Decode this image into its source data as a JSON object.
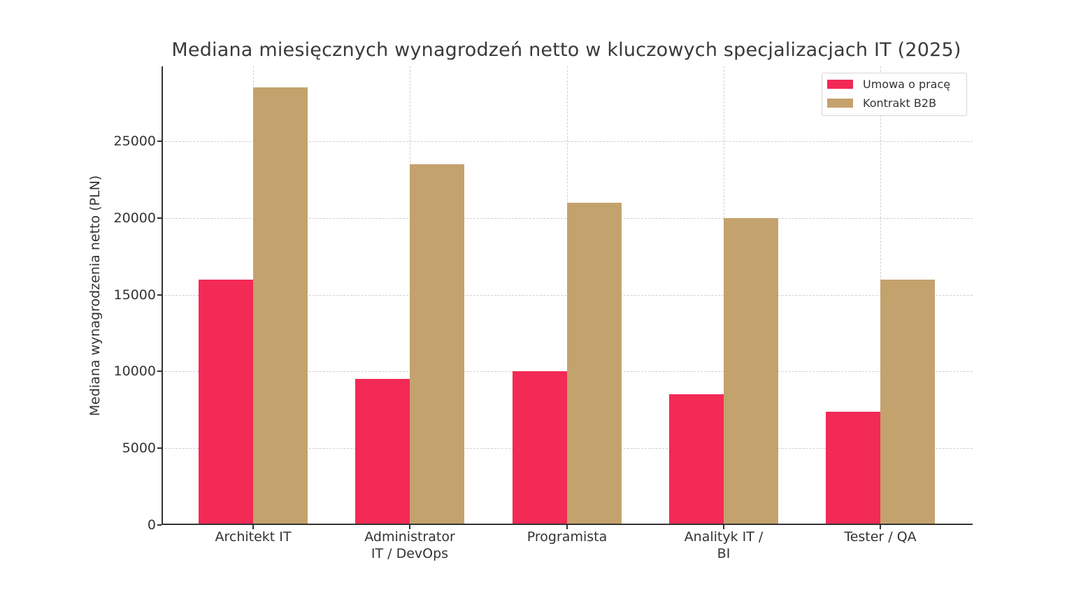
{
  "chart_data": {
    "type": "bar",
    "title": "Mediana miesięcznych wynagrodzeń netto w kluczowych specjalizacjach IT (2025)",
    "xlabel": "",
    "ylabel": "Mediana wynagrodzenia netto (PLN)",
    "categories": [
      "Architekt IT",
      "Administrator\nIT / DevOps",
      "Programista",
      "Analityk IT /\nBI",
      "Tester / QA"
    ],
    "series": [
      {
        "name": "Umowa o pracę",
        "color": "#f22a55",
        "values": [
          16000,
          9500,
          10000,
          8500,
          7400
        ]
      },
      {
        "name": "Kontrakt B2B",
        "color": "#c4a26d",
        "values": [
          28500,
          23500,
          21000,
          20000,
          16000
        ]
      }
    ],
    "yticks": [
      "0",
      "5000",
      "10000",
      "15000",
      "20000",
      "25000"
    ],
    "ylim": [
      0,
      29900
    ],
    "grid": true,
    "legend_position": "upper right"
  }
}
